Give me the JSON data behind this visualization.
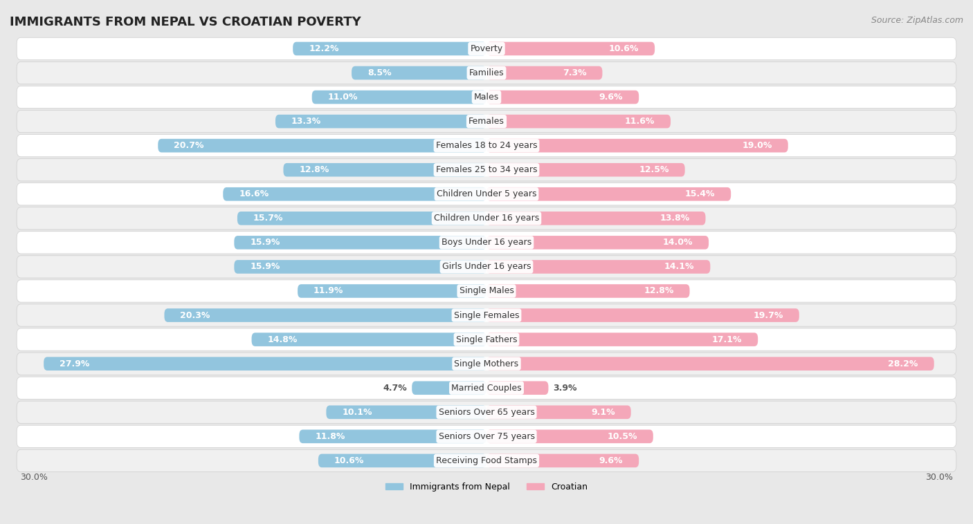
{
  "title": "IMMIGRANTS FROM NEPAL VS CROATIAN POVERTY",
  "source": "Source: ZipAtlas.com",
  "categories": [
    "Poverty",
    "Families",
    "Males",
    "Females",
    "Females 18 to 24 years",
    "Females 25 to 34 years",
    "Children Under 5 years",
    "Children Under 16 years",
    "Boys Under 16 years",
    "Girls Under 16 years",
    "Single Males",
    "Single Females",
    "Single Fathers",
    "Single Mothers",
    "Married Couples",
    "Seniors Over 65 years",
    "Seniors Over 75 years",
    "Receiving Food Stamps"
  ],
  "nepal_values": [
    12.2,
    8.5,
    11.0,
    13.3,
    20.7,
    12.8,
    16.6,
    15.7,
    15.9,
    15.9,
    11.9,
    20.3,
    14.8,
    27.9,
    4.7,
    10.1,
    11.8,
    10.6
  ],
  "croatian_values": [
    10.6,
    7.3,
    9.6,
    11.6,
    19.0,
    12.5,
    15.4,
    13.8,
    14.0,
    14.1,
    12.8,
    19.7,
    17.1,
    28.2,
    3.9,
    9.1,
    10.5,
    9.6
  ],
  "nepal_color": "#92c5de",
  "croatian_color": "#f4a7b9",
  "nepal_label": "Immigrants from Nepal",
  "croatian_label": "Croatian",
  "background_color": "#e8e8e8",
  "row_color_odd": "#ffffff",
  "row_color_even": "#f0f0f0",
  "x_max": 30.0,
  "title_fontsize": 13,
  "source_fontsize": 9,
  "value_fontsize": 9,
  "category_fontsize": 9,
  "legend_fontsize": 9
}
